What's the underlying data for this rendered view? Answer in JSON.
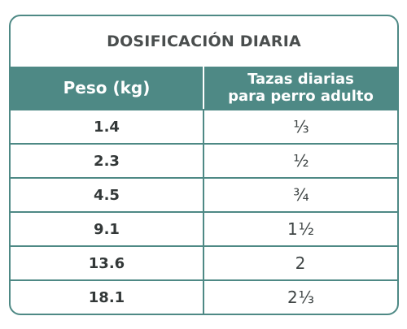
{
  "title": "DOSIFICACIÓN DIARIA",
  "header": {
    "weight": "Peso (kg)",
    "cups_line1": "Tazas diarias",
    "cups_line2": "para perro adulto"
  },
  "rows": [
    {
      "weight": "1.4",
      "whole": "",
      "fraction": "⅓"
    },
    {
      "weight": "2.3",
      "whole": "",
      "fraction": "½"
    },
    {
      "weight": "4.5",
      "whole": "",
      "fraction": "¾"
    },
    {
      "weight": "9.1",
      "whole": "1",
      "fraction": "½"
    },
    {
      "weight": "13.6",
      "whole": "2",
      "fraction": ""
    },
    {
      "weight": "18.1",
      "whole": "2",
      "fraction": "⅓"
    }
  ]
}
